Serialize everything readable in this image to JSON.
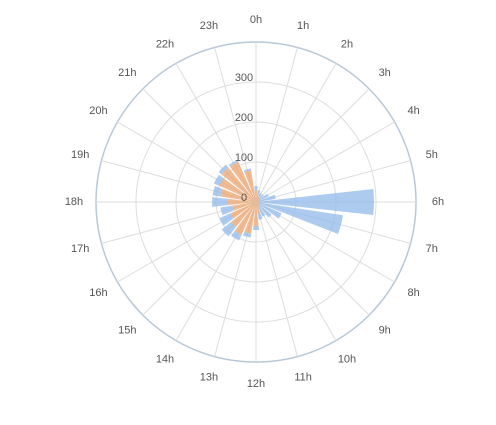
{
  "chart_data": {
    "type": "polar-bar",
    "stacked": true,
    "categories": [
      "0h",
      "1h",
      "2h",
      "3h",
      "4h",
      "5h",
      "6h",
      "7h",
      "8h",
      "9h",
      "10h",
      "11h",
      "12h",
      "13h",
      "14h",
      "15h",
      "16h",
      "17h",
      "18h",
      "19h",
      "20h",
      "21h",
      "22h",
      "23h"
    ],
    "series": [
      {
        "color": "#eba36e",
        "values": [
          30,
          20,
          15,
          10,
          10,
          10,
          10,
          10,
          10,
          10,
          15,
          30,
          60,
          80,
          90,
          80,
          70,
          60,
          70,
          90,
          100,
          110,
          110,
          80
        ]
      },
      {
        "color": "#91b9ea",
        "values": [
          10,
          10,
          10,
          15,
          25,
          40,
          285,
          210,
          60,
          40,
          25,
          15,
          10,
          10,
          15,
          30,
          30,
          30,
          40,
          20,
          15,
          10,
          5,
          5
        ]
      }
    ],
    "ylim": [
      0,
      400
    ],
    "yticks": [
      0,
      100,
      200,
      300
    ],
    "grid": true
  }
}
